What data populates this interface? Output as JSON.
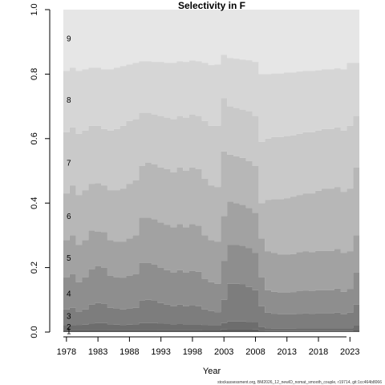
{
  "chart_data": {
    "type": "area",
    "style": "stacked-step",
    "title": "Selectivity in F",
    "xlabel": "Year",
    "ylabel": "",
    "xlim": [
      1977,
      2025
    ],
    "ylim": [
      0,
      1
    ],
    "x_ticks": [
      1978,
      1983,
      1988,
      1993,
      1998,
      2003,
      2008,
      2013,
      2018,
      2023
    ],
    "y_ticks": [
      "0.0",
      "0.2",
      "0.4",
      "0.6",
      "0.8",
      "1.0"
    ],
    "grid": false,
    "legend": "none",
    "years": [
      1978,
      1979,
      1980,
      1981,
      1982,
      1983,
      1984,
      1985,
      1986,
      1987,
      1988,
      1989,
      1990,
      1991,
      1992,
      1993,
      1994,
      1995,
      1996,
      1997,
      1998,
      1999,
      2000,
      2001,
      2002,
      2003,
      2004,
      2005,
      2006,
      2007,
      2008,
      2009,
      2010,
      2011,
      2012,
      2013,
      2014,
      2015,
      2016,
      2017,
      2018,
      2019,
      2020,
      2021,
      2022,
      2023,
      2024
    ],
    "cumulative_boundaries": [
      {
        "name": "1",
        "values": [
          0.006,
          0.006,
          0.006,
          0.006,
          0.007,
          0.007,
          0.007,
          0.006,
          0.006,
          0.006,
          0.006,
          0.006,
          0.007,
          0.007,
          0.007,
          0.006,
          0.006,
          0.006,
          0.006,
          0.006,
          0.006,
          0.006,
          0.005,
          0.005,
          0.005,
          0.008,
          0.009,
          0.009,
          0.009,
          0.009,
          0.008,
          0.004,
          0.003,
          0.003,
          0.003,
          0.003,
          0.003,
          0.003,
          0.003,
          0.003,
          0.003,
          0.003,
          0.003,
          0.003,
          0.003,
          0.003,
          0.005
        ]
      },
      {
        "name": "2",
        "values": [
          0.022,
          0.022,
          0.021,
          0.023,
          0.027,
          0.028,
          0.028,
          0.024,
          0.023,
          0.022,
          0.023,
          0.024,
          0.028,
          0.028,
          0.028,
          0.026,
          0.025,
          0.024,
          0.025,
          0.024,
          0.024,
          0.024,
          0.021,
          0.02,
          0.02,
          0.028,
          0.033,
          0.033,
          0.033,
          0.032,
          0.03,
          0.016,
          0.012,
          0.011,
          0.011,
          0.011,
          0.011,
          0.012,
          0.012,
          0.012,
          0.012,
          0.012,
          0.012,
          0.012,
          0.012,
          0.012,
          0.02
        ]
      },
      {
        "name": "3",
        "values": [
          0.07,
          0.075,
          0.063,
          0.07,
          0.085,
          0.09,
          0.088,
          0.075,
          0.072,
          0.07,
          0.073,
          0.075,
          0.098,
          0.1,
          0.097,
          0.09,
          0.085,
          0.08,
          0.085,
          0.08,
          0.082,
          0.08,
          0.07,
          0.065,
          0.062,
          0.1,
          0.15,
          0.15,
          0.148,
          0.14,
          0.13,
          0.08,
          0.06,
          0.056,
          0.055,
          0.055,
          0.055,
          0.057,
          0.058,
          0.057,
          0.058,
          0.058,
          0.058,
          0.06,
          0.055,
          0.06,
          0.085
        ]
      },
      {
        "name": "4",
        "values": [
          0.17,
          0.18,
          0.155,
          0.17,
          0.195,
          0.205,
          0.2,
          0.175,
          0.17,
          0.168,
          0.175,
          0.18,
          0.215,
          0.215,
          0.21,
          0.2,
          0.192,
          0.185,
          0.192,
          0.185,
          0.19,
          0.187,
          0.165,
          0.155,
          0.15,
          0.22,
          0.27,
          0.27,
          0.268,
          0.26,
          0.245,
          0.17,
          0.13,
          0.125,
          0.122,
          0.122,
          0.123,
          0.127,
          0.128,
          0.127,
          0.13,
          0.13,
          0.13,
          0.135,
          0.125,
          0.133,
          0.185
        ]
      },
      {
        "name": "5",
        "values": [
          0.285,
          0.3,
          0.27,
          0.285,
          0.315,
          0.312,
          0.31,
          0.285,
          0.28,
          0.28,
          0.29,
          0.3,
          0.355,
          0.355,
          0.35,
          0.34,
          0.332,
          0.325,
          0.335,
          0.325,
          0.335,
          0.33,
          0.3,
          0.285,
          0.28,
          0.36,
          0.405,
          0.4,
          0.395,
          0.385,
          0.37,
          0.29,
          0.25,
          0.245,
          0.24,
          0.24,
          0.242,
          0.248,
          0.25,
          0.248,
          0.252,
          0.252,
          0.252,
          0.258,
          0.245,
          0.25,
          0.3
        ]
      },
      {
        "name": "6",
        "values": [
          0.43,
          0.455,
          0.425,
          0.44,
          0.46,
          0.462,
          0.455,
          0.44,
          0.44,
          0.445,
          0.46,
          0.47,
          0.515,
          0.525,
          0.52,
          0.51,
          0.505,
          0.495,
          0.51,
          0.5,
          0.51,
          0.505,
          0.475,
          0.455,
          0.45,
          0.56,
          0.55,
          0.545,
          0.54,
          0.53,
          0.515,
          0.4,
          0.41,
          0.412,
          0.412,
          0.415,
          0.42,
          0.425,
          0.43,
          0.43,
          0.438,
          0.445,
          0.445,
          0.45,
          0.435,
          0.445,
          0.51
        ]
      },
      {
        "name": "7",
        "values": [
          0.62,
          0.635,
          0.615,
          0.625,
          0.64,
          0.64,
          0.63,
          0.625,
          0.63,
          0.64,
          0.655,
          0.66,
          0.68,
          0.68,
          0.675,
          0.67,
          0.665,
          0.66,
          0.67,
          0.665,
          0.675,
          0.67,
          0.655,
          0.64,
          0.64,
          0.725,
          0.7,
          0.695,
          0.69,
          0.685,
          0.67,
          0.59,
          0.6,
          0.605,
          0.605,
          0.608,
          0.61,
          0.615,
          0.62,
          0.62,
          0.625,
          0.63,
          0.63,
          0.635,
          0.625,
          0.64,
          0.67
        ]
      },
      {
        "name": "8",
        "values": [
          0.81,
          0.82,
          0.81,
          0.815,
          0.82,
          0.82,
          0.815,
          0.815,
          0.82,
          0.825,
          0.83,
          0.835,
          0.84,
          0.84,
          0.838,
          0.838,
          0.835,
          0.835,
          0.84,
          0.838,
          0.842,
          0.84,
          0.835,
          0.828,
          0.83,
          0.86,
          0.85,
          0.848,
          0.845,
          0.843,
          0.838,
          0.8,
          0.8,
          0.802,
          0.802,
          0.805,
          0.805,
          0.808,
          0.81,
          0.81,
          0.812,
          0.815,
          0.815,
          0.818,
          0.815,
          0.835,
          0.835
        ]
      },
      {
        "name": "9",
        "values": [
          1,
          1,
          1,
          1,
          1,
          1,
          1,
          1,
          1,
          1,
          1,
          1,
          1,
          1,
          1,
          1,
          1,
          1,
          1,
          1,
          1,
          1,
          1,
          1,
          1,
          1,
          1,
          1,
          1,
          1,
          1,
          1,
          1,
          1,
          1,
          1,
          1,
          1,
          1,
          1,
          1,
          1,
          1,
          1,
          1,
          1,
          1
        ]
      }
    ],
    "age_labels": [
      {
        "text": "1",
        "y": 0.003
      },
      {
        "text": "2",
        "y": 0.016
      },
      {
        "text": "3",
        "y": 0.05
      },
      {
        "text": "4",
        "y": 0.12
      },
      {
        "text": "5",
        "y": 0.23
      },
      {
        "text": "6",
        "y": 0.36
      },
      {
        "text": "7",
        "y": 0.525
      },
      {
        "text": "8",
        "y": 0.72
      },
      {
        "text": "9",
        "y": 0.91
      }
    ],
    "colors": [
      "#5c5c5c",
      "#6d6d6d",
      "#7d7d7d",
      "#8e8e8e",
      "#a2a2a2",
      "#b7b7b7",
      "#c9c9c9",
      "#d6d6d6",
      "#e6e6e6"
    ]
  },
  "footer": "stockassessment.org, BM2026_12_newID_nomat_smooth_couple, r19714, git:1cc464b8066"
}
